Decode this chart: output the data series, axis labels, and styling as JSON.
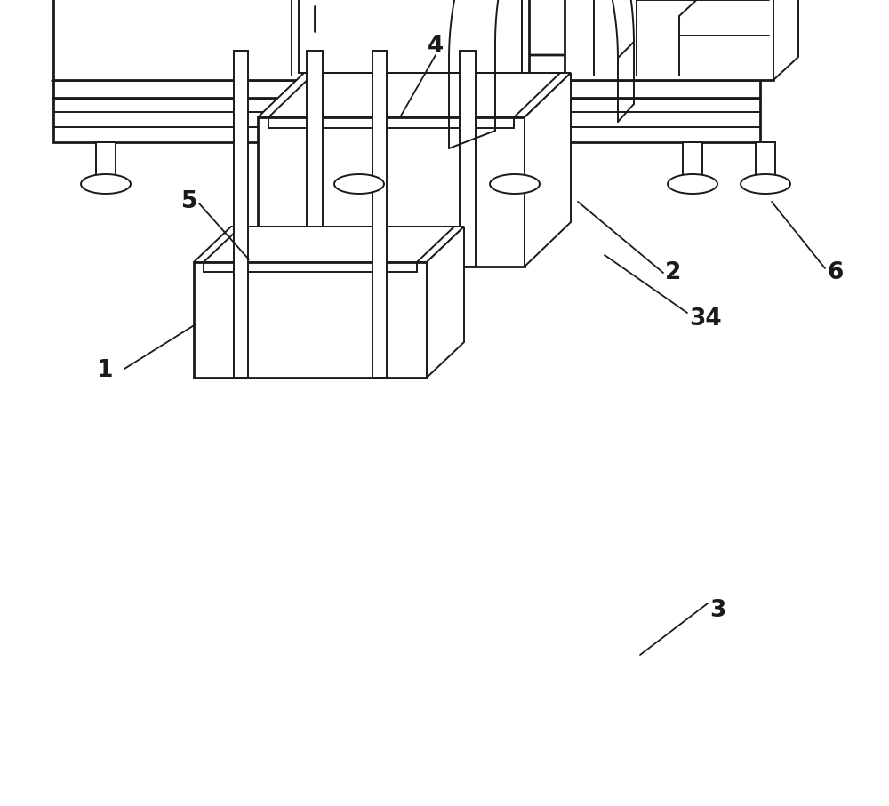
{
  "bg": "#ffffff",
  "lc": "#1a1a1a",
  "lw": 1.4,
  "tlw": 2.0,
  "fig_w": 10.0,
  "fig_h": 9.07,
  "label_fs": 19
}
